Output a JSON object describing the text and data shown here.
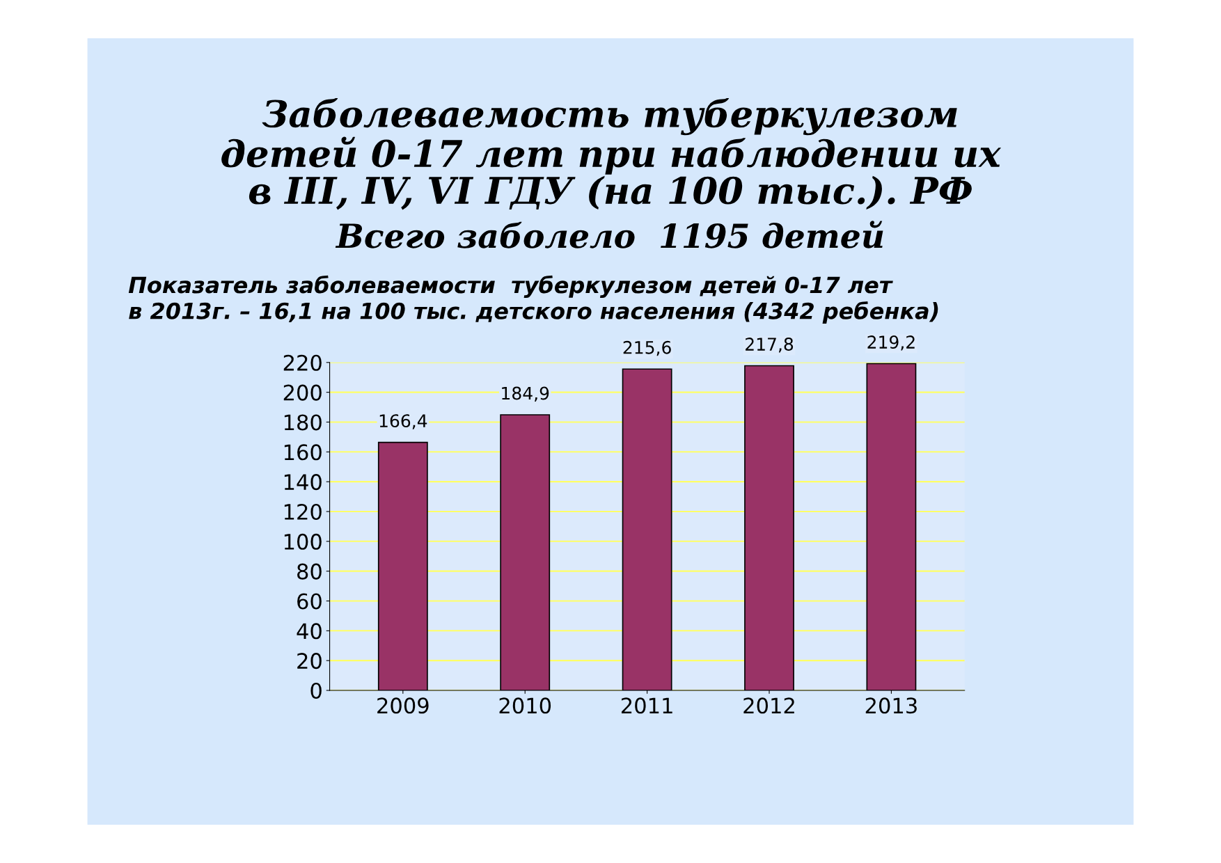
{
  "chart_data": {
    "type": "bar",
    "title": "Заболеваемость туберкулезом\nдетей 0-17 лет при наблюдении их\nв III, IV, VI ГДУ (на 100 тыс.). РФ",
    "subtitle": "Всего заболело  1195 детей",
    "annotations": [
      "Показатель заболеваемости  туберкулезом детей 0-17 лет\nв 2013г. – 16,1 на 100 тыс. детского населения (4342 ребенка)"
    ],
    "categories": [
      "2009",
      "2010",
      "2011",
      "2012",
      "2013"
    ],
    "values": [
      166.4,
      184.9,
      215.6,
      217.8,
      219.2
    ],
    "value_labels": [
      "166,4",
      "184,9",
      "215,6",
      "217,8",
      "219,2"
    ],
    "color": "#993366",
    "ylim": [
      0,
      220
    ],
    "yticks": [
      0,
      20,
      40,
      60,
      80,
      100,
      120,
      140,
      160,
      180,
      200,
      220
    ],
    "grid": "y"
  }
}
